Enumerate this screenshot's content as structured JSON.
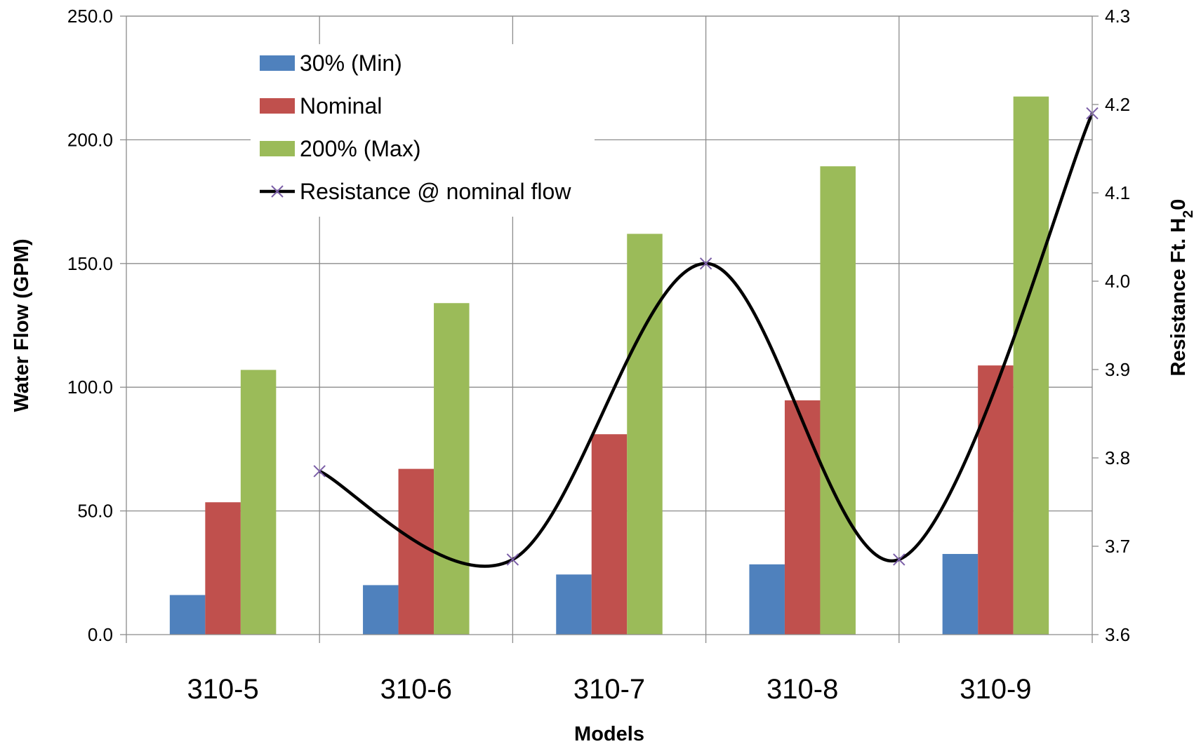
{
  "chart_data": {
    "type": "bar",
    "categories": [
      "310-5",
      "310-6",
      "310-7",
      "310-8",
      "310-9"
    ],
    "series": [
      {
        "name": "30% (Min)",
        "kind": "bar",
        "axis": "left",
        "color": "#4f81bd",
        "values": [
          16.0,
          20.0,
          24.3,
          28.4,
          32.6
        ]
      },
      {
        "name": "Nominal",
        "kind": "bar",
        "axis": "left",
        "color": "#c0504d",
        "values": [
          53.5,
          67.0,
          81.0,
          94.7,
          108.8
        ]
      },
      {
        "name": "200% (Max)",
        "kind": "bar",
        "axis": "left",
        "color": "#9bbb59",
        "values": [
          107.0,
          134.0,
          162.0,
          189.3,
          217.5
        ]
      },
      {
        "name": "Resistance @ nominal flow",
        "kind": "line",
        "axis": "right",
        "color": "#000000",
        "marker": "x",
        "marker_color": "#7b5ea7",
        "values": [
          3.785,
          3.685,
          4.02,
          3.685,
          4.19
        ]
      }
    ],
    "xlabel": "Models",
    "ylabel": "Water Flow (GPM)",
    "y2label_parts": [
      "Resistance Ft. H",
      "2",
      "0"
    ],
    "ylim": [
      0,
      250
    ],
    "y2lim": [
      3.6,
      4.3
    ],
    "yticks": [
      "0.0",
      "50.0",
      "100.0",
      "150.0",
      "200.0",
      "250.0"
    ],
    "y2ticks": [
      "3.6",
      "3.7",
      "3.8",
      "3.9",
      "4.0",
      "4.1",
      "4.2",
      "4.3"
    ],
    "grid": true,
    "legend_position": "top-left"
  }
}
